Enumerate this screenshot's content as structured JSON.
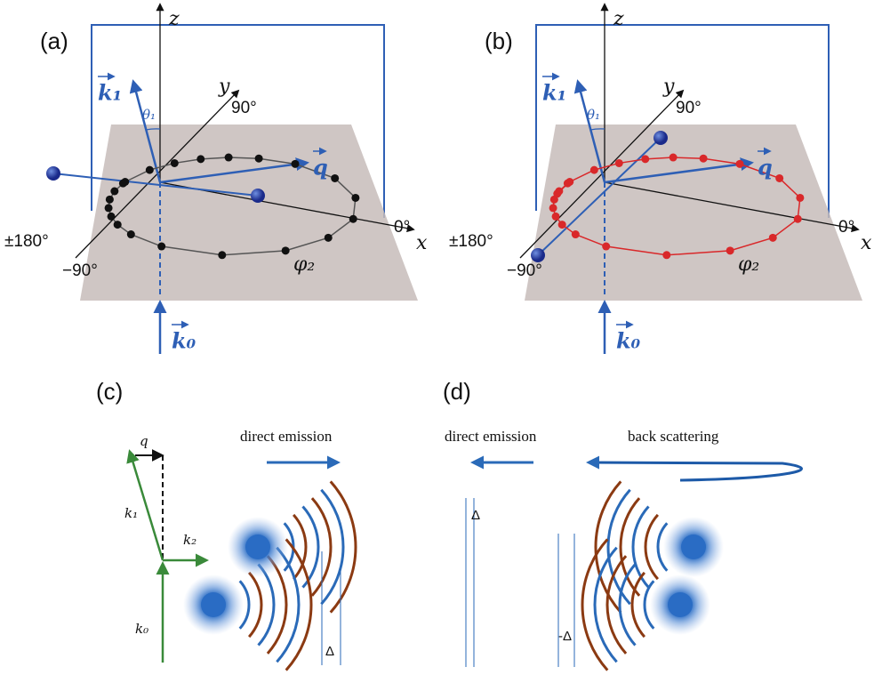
{
  "panel_a": {
    "label": "(a)",
    "z": "z",
    "y": "y",
    "x": "x",
    "k1": "k₁",
    "theta1": "θ₁",
    "q": "q",
    "k0": "k₀",
    "angle_90": "90°",
    "angle_180": "±180°",
    "angle_0": "0°",
    "angle_m90": "−90°",
    "phi2": "φ₂"
  },
  "panel_b": {
    "label": "(b)",
    "z": "z",
    "y": "y",
    "x": "x",
    "k1": "k₁",
    "theta1": "θ₁",
    "q": "q",
    "k0": "k₀",
    "angle_90": "90°",
    "angle_180": "±180°",
    "angle_0": "0°",
    "angle_m90": "−90°",
    "phi2": "φ₂"
  },
  "panel_c": {
    "label": "(c)",
    "direct_emission": "direct emission",
    "q": "q",
    "k1": "k₁",
    "k2": "k₂",
    "k0": "k₀",
    "delta": "Δ"
  },
  "panel_d": {
    "label": "(d)",
    "direct_emission": "direct emission",
    "back_scattering": "back scattering",
    "delta": "Δ",
    "minus_delta": "-Δ"
  }
}
